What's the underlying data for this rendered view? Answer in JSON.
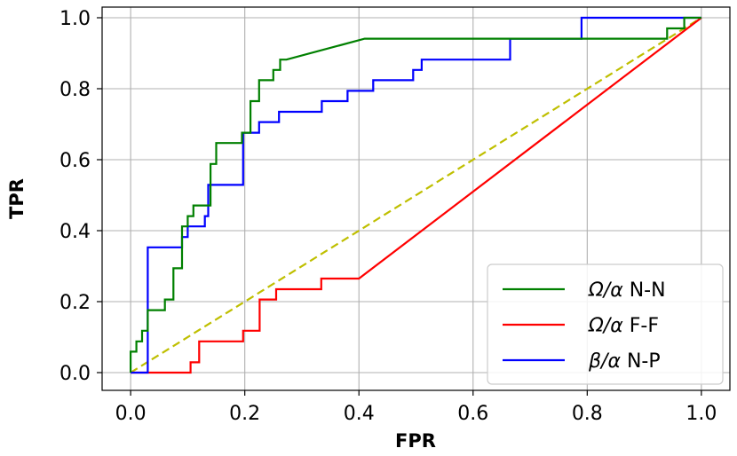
{
  "chart_data": {
    "type": "line",
    "title": "",
    "xlabel": "FPR",
    "ylabel": "TPR",
    "xlim": [
      -0.05,
      1.05
    ],
    "ylim": [
      -0.05,
      1.03
    ],
    "xticks": [
      "0.0",
      "0.2",
      "0.4",
      "0.6",
      "0.8",
      "1.0"
    ],
    "yticks": [
      "0.0",
      "0.2",
      "0.4",
      "0.6",
      "0.8",
      "1.0"
    ],
    "grid": true,
    "legend_position": "lower-right",
    "series": [
      {
        "name": "Ω/α N-N",
        "legend_parts": [
          "Ω/α",
          " N-N"
        ],
        "color": "#008000",
        "dash": "solid",
        "x": [
          0.0,
          0.0,
          0.01,
          0.01,
          0.02,
          0.02,
          0.03,
          0.03,
          0.06,
          0.06,
          0.075,
          0.075,
          0.09,
          0.09,
          0.1,
          0.1,
          0.11,
          0.11,
          0.14,
          0.14,
          0.15,
          0.15,
          0.195,
          0.195,
          0.21,
          0.21,
          0.225,
          0.225,
          0.25,
          0.25,
          0.262,
          0.262,
          0.273,
          0.273,
          0.41,
          0.41,
          0.94,
          0.94,
          0.97,
          0.97,
          1.0
        ],
        "y": [
          0.0,
          0.059,
          0.059,
          0.088,
          0.088,
          0.118,
          0.118,
          0.176,
          0.176,
          0.206,
          0.206,
          0.294,
          0.294,
          0.412,
          0.412,
          0.441,
          0.441,
          0.471,
          0.471,
          0.588,
          0.588,
          0.647,
          0.647,
          0.676,
          0.676,
          0.765,
          0.765,
          0.824,
          0.824,
          0.853,
          0.853,
          0.882,
          0.882,
          0.882,
          0.941,
          0.941,
          0.941,
          0.97,
          0.97,
          1.0,
          1.0
        ]
      },
      {
        "name": "Ω/α F-F",
        "legend_parts": [
          "Ω/α",
          " F-F"
        ],
        "color": "#ff0000",
        "dash": "solid",
        "x": [
          0.0,
          0.105,
          0.105,
          0.12,
          0.12,
          0.197,
          0.197,
          0.226,
          0.226,
          0.255,
          0.255,
          0.334,
          0.334,
          0.4,
          1.0
        ],
        "y": [
          0.0,
          0.0,
          0.029,
          0.029,
          0.088,
          0.088,
          0.118,
          0.118,
          0.206,
          0.206,
          0.235,
          0.235,
          0.265,
          0.265,
          1.0
        ]
      },
      {
        "name": "β/α N-P",
        "legend_parts": [
          "β/α",
          " N-P"
        ],
        "color": "#0000ff",
        "dash": "solid",
        "x": [
          0.0,
          0.03,
          0.03,
          0.09,
          0.09,
          0.1,
          0.1,
          0.115,
          0.115,
          0.13,
          0.13,
          0.136,
          0.136,
          0.197,
          0.197,
          0.225,
          0.225,
          0.26,
          0.26,
          0.335,
          0.335,
          0.38,
          0.38,
          0.425,
          0.425,
          0.495,
          0.495,
          0.51,
          0.51,
          0.665,
          0.665,
          0.79,
          0.79,
          1.0
        ],
        "y": [
          0.0,
          0.0,
          0.353,
          0.353,
          0.382,
          0.382,
          0.412,
          0.412,
          0.412,
          0.412,
          0.441,
          0.441,
          0.529,
          0.529,
          0.676,
          0.676,
          0.706,
          0.706,
          0.735,
          0.735,
          0.765,
          0.765,
          0.794,
          0.794,
          0.824,
          0.824,
          0.853,
          0.853,
          0.882,
          0.882,
          0.941,
          0.941,
          1.0,
          1.0
        ]
      },
      {
        "color": "#bfbf00",
        "dash": "dashed",
        "x": [
          0.0,
          1.0
        ],
        "y": [
          0.0,
          1.0
        ]
      }
    ]
  }
}
